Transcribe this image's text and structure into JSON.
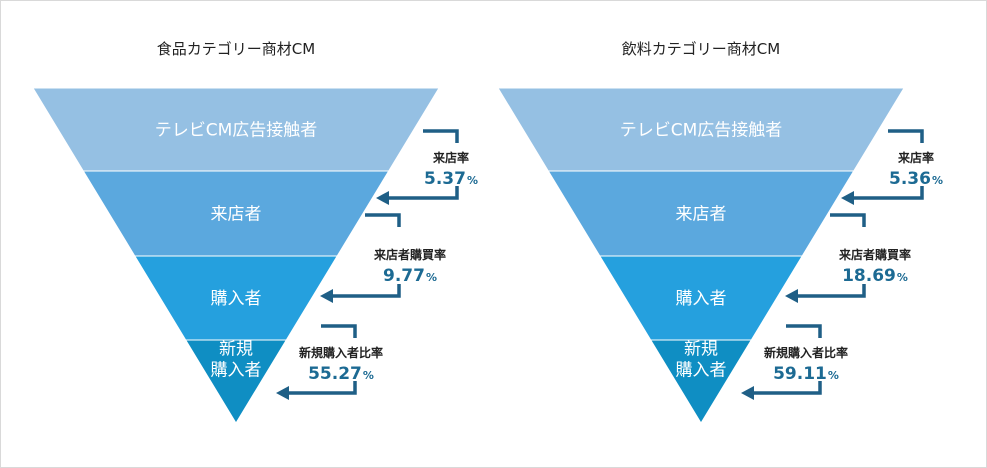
{
  "funnels": [
    {
      "title": "食品カテゴリー商材CM",
      "layers": [
        {
          "label": "テレビCM広告接触者",
          "color": "#95c0e3"
        },
        {
          "label": "来店者",
          "color": "#5ba8de"
        },
        {
          "label": "購入者",
          "color": "#25a0de"
        },
        {
          "label": "新規\n購入者",
          "color": "#0f8ec3"
        }
      ],
      "rates": [
        {
          "label": "来店率",
          "value": "5.37",
          "unit": "%"
        },
        {
          "label": "来店者購買率",
          "value": "9.77",
          "unit": "%"
        },
        {
          "label": "新規購入者比率",
          "value": "55.27",
          "unit": "%"
        }
      ]
    },
    {
      "title": "飲料カテゴリー商材CM",
      "layers": [
        {
          "label": "テレビCM広告接触者",
          "color": "#95c0e3"
        },
        {
          "label": "来店者",
          "color": "#5ba8de"
        },
        {
          "label": "購入者",
          "color": "#25a0de"
        },
        {
          "label": "新規\n購入者",
          "color": "#0f8ec3"
        }
      ],
      "rates": [
        {
          "label": "来店率",
          "value": "5.36",
          "unit": "%"
        },
        {
          "label": "来店者購買率",
          "value": "18.69",
          "unit": "%"
        },
        {
          "label": "新規購入者比率",
          "value": "59.11",
          "unit": "%"
        }
      ]
    }
  ]
}
